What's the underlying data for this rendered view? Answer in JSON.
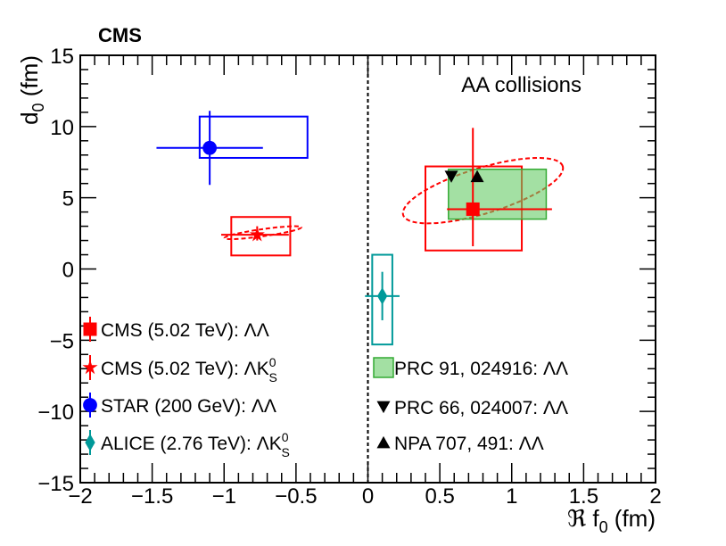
{
  "chart_data": {
    "type": "scatter",
    "title": "",
    "experiment_label": "CMS",
    "annotation": "AA collisions",
    "xlabel": "ℜ f",
    "xlabel_sub": "0",
    "xlabel_unit": "(fm)",
    "ylabel": "d",
    "ylabel_sub": "0",
    "ylabel_unit": "(fm)",
    "xlim": [
      -2,
      2
    ],
    "ylim": [
      -15,
      15
    ],
    "x_ticks": [
      -2,
      -1.5,
      -1,
      -0.5,
      0,
      0.5,
      1,
      1.5,
      2
    ],
    "x_tick_labels": [
      "−2",
      "−1.5",
      "−1",
      "−0.5",
      "0",
      "0.5",
      "1",
      "1.5",
      "2"
    ],
    "y_ticks": [
      -15,
      -10,
      -5,
      0,
      5,
      10,
      15
    ],
    "y_tick_labels": [
      "−15",
      "−10",
      "−5",
      "0",
      "5",
      "10",
      "15"
    ],
    "reference_line_x": 0,
    "series": [
      {
        "name": "CMS (5.02 TeV): ΛΛ",
        "color": "#ff0000",
        "marker": "square",
        "x": 0.73,
        "y": 4.2,
        "xerr": [
          0.18,
          0.55
        ],
        "yerr": [
          2.6,
          5.7
        ],
        "syst_box": {
          "x": [
            0.4,
            1.07
          ],
          "y": [
            1.3,
            7.2
          ]
        },
        "ellipse": {
          "cx": 0.8,
          "cy": 5.5,
          "rx": 0.58,
          "ry": 1.6,
          "angle_deg": -17
        }
      },
      {
        "name": "CMS (5.02 TeV): ΛK",
        "name_sup": "0",
        "name_sub": "S",
        "color": "#ff0000",
        "marker": "star",
        "x": -0.77,
        "y": 2.4,
        "xerr": [
          0.25,
          0.22
        ],
        "yerr": [
          0.4,
          0.6
        ],
        "syst_box": {
          "x": [
            -0.95,
            -0.54
          ],
          "y": [
            0.95,
            3.65
          ]
        },
        "ellipse": {
          "cx": -0.73,
          "cy": 2.55,
          "rx": 0.27,
          "ry": 0.25,
          "angle_deg": -8
        }
      },
      {
        "name": "STAR (200 GeV): ΛΛ",
        "color": "#0000ff",
        "marker": "circle",
        "x": -1.1,
        "y": 8.5,
        "xerr": [
          0.37,
          0.37
        ],
        "yerr": [
          2.6,
          2.6
        ],
        "syst_box": {
          "x": [
            -1.17,
            -0.42
          ],
          "y": [
            7.8,
            10.7
          ]
        }
      },
      {
        "name": "ALICE (2.76 TeV): ΛK",
        "name_sup": "0",
        "name_sub": "S",
        "color": "#009999",
        "marker": "diamond",
        "x": 0.1,
        "y": -1.9,
        "xerr": [
          0.12,
          0.12
        ],
        "yerr": [
          1.7,
          1.7
        ],
        "syst_box": {
          "x": [
            0.03,
            0.17
          ],
          "y": [
            -5.3,
            1.0
          ]
        }
      },
      {
        "name": "PRC 91, 024916: ΛΛ",
        "color": "#66cc66",
        "marker": "filled-box",
        "box": {
          "x": [
            0.56,
            1.24
          ],
          "y": [
            3.5,
            7.0
          ]
        }
      },
      {
        "name": "PRC 66, 024007: ΛΛ",
        "color": "#000000",
        "marker": "triangle-down",
        "x": 0.58,
        "y": 6.5
      },
      {
        "name": "NPA 707, 491: ΛΛ",
        "color": "#000000",
        "marker": "triangle-up",
        "x": 0.76,
        "y": 6.5
      }
    ]
  }
}
